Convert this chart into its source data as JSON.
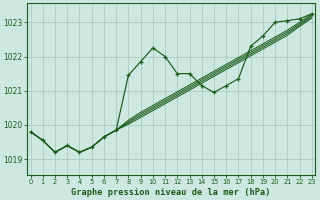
{
  "background_color": "#cce8e0",
  "grid_color": "#aaccc4",
  "line_color": "#1a5c1a",
  "title": "Graphe pression niveau de la mer (hPa)",
  "xlim": [
    -0.3,
    23.3
  ],
  "ylim": [
    1018.55,
    1023.55
  ],
  "yticks": [
    1019,
    1020,
    1021,
    1022,
    1023
  ],
  "xticks": [
    0,
    1,
    2,
    3,
    4,
    5,
    6,
    7,
    8,
    9,
    10,
    11,
    12,
    13,
    14,
    15,
    16,
    17,
    18,
    19,
    20,
    21,
    22,
    23
  ],
  "main_x": [
    0,
    1,
    2,
    3,
    4,
    5,
    6,
    7,
    8,
    9,
    10,
    11,
    12,
    13,
    14,
    15,
    16,
    17,
    18,
    19,
    20,
    21,
    22,
    23
  ],
  "main_y": [
    1019.8,
    1019.55,
    1019.2,
    1019.4,
    1019.2,
    1019.35,
    1019.65,
    1019.85,
    1021.45,
    1021.85,
    1022.25,
    1022.0,
    1021.5,
    1021.5,
    1021.15,
    1020.95,
    1021.15,
    1021.35,
    1022.3,
    1022.6,
    1023.0,
    1023.05,
    1023.1,
    1023.25
  ],
  "bundle": [
    [
      0,
      1,
      2,
      3,
      4,
      5,
      6,
      7,
      8,
      9,
      10,
      11,
      12,
      13,
      14,
      15,
      16,
      17,
      18,
      19,
      20,
      21,
      22,
      23
    ],
    [
      1019.8,
      1019.55,
      1019.2,
      1019.4,
      1019.2,
      1019.35,
      1019.65,
      1019.85,
      1020.02,
      1020.22,
      1020.42,
      1020.62,
      1020.82,
      1021.02,
      1021.22,
      1021.42,
      1021.62,
      1021.82,
      1022.02,
      1022.22,
      1022.42,
      1022.62,
      1022.88,
      1023.12
    ],
    [
      1019.8,
      1019.55,
      1019.2,
      1019.4,
      1019.2,
      1019.35,
      1019.65,
      1019.85,
      1020.06,
      1020.27,
      1020.47,
      1020.67,
      1020.87,
      1021.07,
      1021.27,
      1021.47,
      1021.67,
      1021.87,
      1022.07,
      1022.27,
      1022.47,
      1022.67,
      1022.92,
      1023.16
    ],
    [
      1019.8,
      1019.55,
      1019.2,
      1019.4,
      1019.2,
      1019.35,
      1019.65,
      1019.85,
      1020.1,
      1020.32,
      1020.52,
      1020.72,
      1020.92,
      1021.12,
      1021.32,
      1021.52,
      1021.72,
      1021.92,
      1022.12,
      1022.32,
      1022.52,
      1022.72,
      1022.96,
      1023.2
    ],
    [
      1019.8,
      1019.55,
      1019.2,
      1019.4,
      1019.2,
      1019.35,
      1019.65,
      1019.85,
      1020.14,
      1020.37,
      1020.57,
      1020.77,
      1020.97,
      1021.17,
      1021.37,
      1021.57,
      1021.77,
      1021.97,
      1022.17,
      1022.37,
      1022.57,
      1022.77,
      1023.0,
      1023.24
    ]
  ]
}
